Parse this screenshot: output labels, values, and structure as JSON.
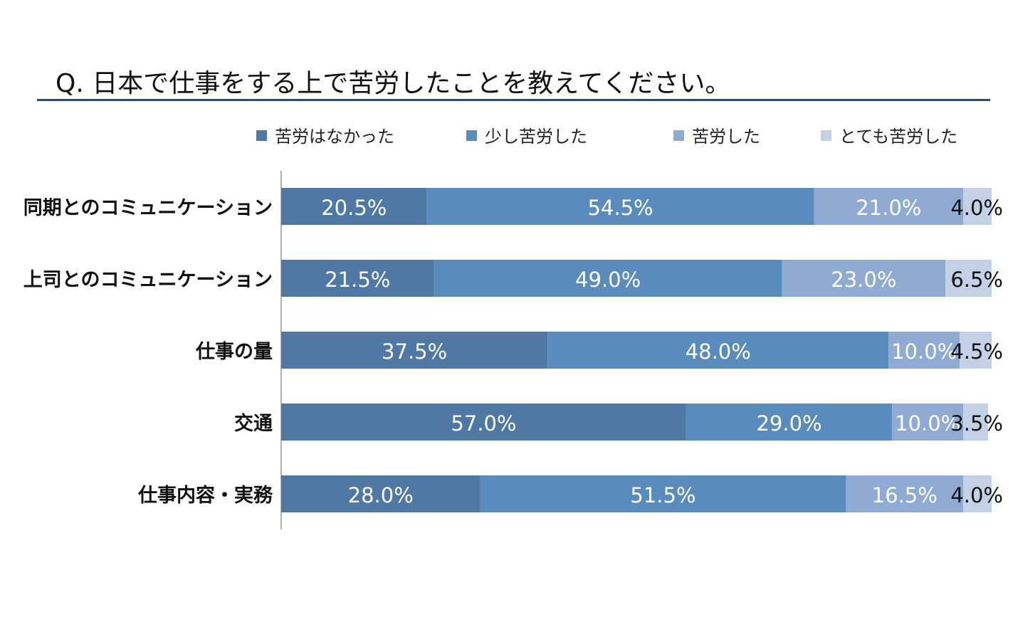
{
  "chart_data": {
    "type": "bar",
    "orientation": "horizontal",
    "stacked": true,
    "title": "Q. 日本で仕事をする上で苦労したことを教えてください。",
    "categories": [
      "同期とのコミュニケーション",
      "上司とのコミュニケーション",
      "仕事の量",
      "交通",
      "仕事内容・実務"
    ],
    "series": [
      {
        "name": "苦労はなかった",
        "color": "#4f78a4",
        "label_color": "#ffffff",
        "values": [
          20.5,
          21.5,
          37.5,
          57.0,
          28.0
        ]
      },
      {
        "name": "少し苦労した",
        "color": "#5a8bbd",
        "label_color": "#ffffff",
        "values": [
          54.5,
          49.0,
          48.0,
          29.0,
          51.5
        ]
      },
      {
        "name": "苦労した",
        "color": "#8fabd3",
        "label_color": "#ffffff",
        "values": [
          21.0,
          23.0,
          10.0,
          10.0,
          16.5
        ]
      },
      {
        "name": "とても苦労した",
        "color": "#c4d0e6",
        "label_color": "#111111",
        "values": [
          4.0,
          6.5,
          4.5,
          3.5,
          4.0
        ]
      }
    ],
    "unit": "%",
    "xlim": [
      0,
      100
    ],
    "legend": "top",
    "grid": false
  }
}
